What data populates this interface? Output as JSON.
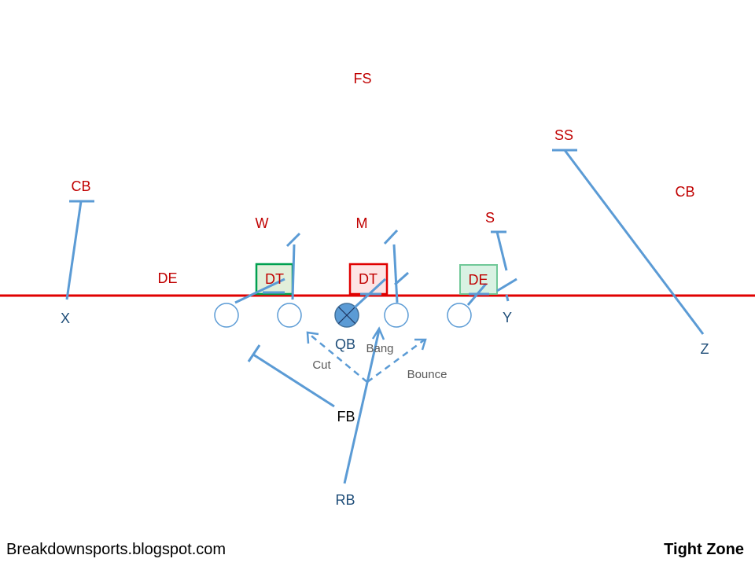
{
  "title": "Tight Zone",
  "site": "Breakdownsports.blogspot.com",
  "colors": {
    "defense": "#c00000",
    "offense": "#1f4e79",
    "route": "#5b9bd5",
    "line_of_scrimmage": "#e00000",
    "option_label": "#595959",
    "fb_label": "#000000"
  },
  "defense": {
    "fs": "FS",
    "ss": "SS",
    "cb_left": "CB",
    "cb_right": "CB",
    "w": "W",
    "m": "M",
    "s": "S",
    "de_left": "DE",
    "dt_left": "DT",
    "dt_center": "DT",
    "de_right": "DE"
  },
  "offense": {
    "x": "X",
    "y": "Y",
    "z": "Z",
    "qb": "QB",
    "fb": "FB",
    "rb": "RB"
  },
  "run_options": {
    "cut": "Cut",
    "bang": "Bang",
    "bounce": "Bounce"
  }
}
